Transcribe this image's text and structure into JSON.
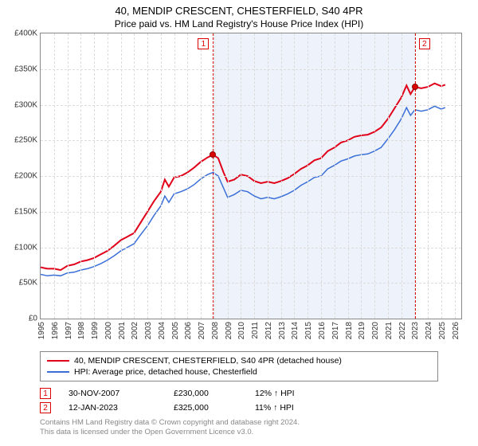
{
  "title": "40, MENDIP CRESCENT, CHESTERFIELD, S40 4PR",
  "subtitle": "Price paid vs. HM Land Registry's House Price Index (HPI)",
  "chart": {
    "type": "line",
    "x_domain": [
      1995,
      2026.5
    ],
    "y_domain": [
      0,
      400000
    ],
    "ylim": [
      0,
      400000
    ],
    "ytick_step": 50000,
    "yticks": [
      0,
      50000,
      100000,
      150000,
      200000,
      250000,
      300000,
      350000,
      400000
    ],
    "ytick_labels": [
      "£0",
      "£50K",
      "£100K",
      "£150K",
      "£200K",
      "£250K",
      "£300K",
      "£350K",
      "£400K"
    ],
    "xticks": [
      1995,
      1996,
      1997,
      1998,
      1999,
      2000,
      2001,
      2002,
      2003,
      2004,
      2005,
      2006,
      2007,
      2008,
      2009,
      2010,
      2011,
      2012,
      2013,
      2014,
      2015,
      2016,
      2017,
      2018,
      2019,
      2020,
      2021,
      2022,
      2023,
      2024,
      2025,
      2026
    ],
    "shade_start": 2007.91,
    "shade_end": 2023.03,
    "background_color": "#ffffff",
    "grid_color": "#dcdcdc",
    "border_color": "#888888",
    "series": [
      {
        "id": "subject",
        "label": "40, MENDIP CRESCENT, CHESTERFIELD, S40 4PR (detached house)",
        "color": "#e1001a",
        "line_width": 2,
        "data": [
          [
            1995.0,
            72000
          ],
          [
            1995.5,
            70000
          ],
          [
            1996.0,
            70000
          ],
          [
            1996.5,
            68000
          ],
          [
            1997.0,
            74000
          ],
          [
            1997.5,
            76000
          ],
          [
            1998.0,
            80000
          ],
          [
            1998.5,
            82000
          ],
          [
            1999.0,
            85000
          ],
          [
            1999.5,
            90000
          ],
          [
            2000.0,
            95000
          ],
          [
            2000.5,
            102000
          ],
          [
            2001.0,
            110000
          ],
          [
            2001.5,
            115000
          ],
          [
            2002.0,
            120000
          ],
          [
            2002.5,
            135000
          ],
          [
            2003.0,
            150000
          ],
          [
            2003.5,
            165000
          ],
          [
            2004.0,
            178000
          ],
          [
            2004.3,
            195000
          ],
          [
            2004.6,
            185000
          ],
          [
            2005.0,
            198000
          ],
          [
            2005.5,
            200000
          ],
          [
            2006.0,
            205000
          ],
          [
            2006.5,
            212000
          ],
          [
            2007.0,
            220000
          ],
          [
            2007.5,
            226000
          ],
          [
            2007.91,
            230000
          ],
          [
            2008.3,
            225000
          ],
          [
            2008.7,
            205000
          ],
          [
            2009.0,
            192000
          ],
          [
            2009.5,
            195000
          ],
          [
            2010.0,
            202000
          ],
          [
            2010.5,
            200000
          ],
          [
            2011.0,
            193000
          ],
          [
            2011.5,
            190000
          ],
          [
            2012.0,
            192000
          ],
          [
            2012.5,
            190000
          ],
          [
            2013.0,
            193000
          ],
          [
            2013.5,
            197000
          ],
          [
            2014.0,
            203000
          ],
          [
            2014.5,
            210000
          ],
          [
            2015.0,
            215000
          ],
          [
            2015.5,
            222000
          ],
          [
            2016.0,
            225000
          ],
          [
            2016.5,
            235000
          ],
          [
            2017.0,
            240000
          ],
          [
            2017.5,
            247000
          ],
          [
            2018.0,
            250000
          ],
          [
            2018.5,
            255000
          ],
          [
            2019.0,
            257000
          ],
          [
            2019.5,
            258000
          ],
          [
            2020.0,
            262000
          ],
          [
            2020.5,
            268000
          ],
          [
            2021.0,
            280000
          ],
          [
            2021.5,
            295000
          ],
          [
            2022.0,
            310000
          ],
          [
            2022.4,
            327000
          ],
          [
            2022.7,
            315000
          ],
          [
            2023.03,
            325000
          ],
          [
            2023.5,
            323000
          ],
          [
            2024.0,
            325000
          ],
          [
            2024.5,
            330000
          ],
          [
            2025.0,
            326000
          ],
          [
            2025.3,
            328000
          ]
        ]
      },
      {
        "id": "hpi",
        "label": "HPI: Average price, detached house, Chesterfield",
        "color": "#3a6fd8",
        "line_width": 1.5,
        "data": [
          [
            1995.0,
            62000
          ],
          [
            1995.5,
            60000
          ],
          [
            1996.0,
            61000
          ],
          [
            1996.5,
            60000
          ],
          [
            1997.0,
            64000
          ],
          [
            1997.5,
            65000
          ],
          [
            1998.0,
            68000
          ],
          [
            1998.5,
            70000
          ],
          [
            1999.0,
            73000
          ],
          [
            1999.5,
            77000
          ],
          [
            2000.0,
            82000
          ],
          [
            2000.5,
            88000
          ],
          [
            2001.0,
            95000
          ],
          [
            2001.5,
            100000
          ],
          [
            2002.0,
            105000
          ],
          [
            2002.5,
            118000
          ],
          [
            2003.0,
            130000
          ],
          [
            2003.5,
            145000
          ],
          [
            2004.0,
            158000
          ],
          [
            2004.3,
            172000
          ],
          [
            2004.6,
            163000
          ],
          [
            2005.0,
            175000
          ],
          [
            2005.5,
            178000
          ],
          [
            2006.0,
            182000
          ],
          [
            2006.5,
            188000
          ],
          [
            2007.0,
            196000
          ],
          [
            2007.5,
            202000
          ],
          [
            2007.91,
            205000
          ],
          [
            2008.3,
            200000
          ],
          [
            2008.7,
            183000
          ],
          [
            2009.0,
            170000
          ],
          [
            2009.5,
            174000
          ],
          [
            2010.0,
            180000
          ],
          [
            2010.5,
            178000
          ],
          [
            2011.0,
            172000
          ],
          [
            2011.5,
            168000
          ],
          [
            2012.0,
            170000
          ],
          [
            2012.5,
            168000
          ],
          [
            2013.0,
            171000
          ],
          [
            2013.5,
            175000
          ],
          [
            2014.0,
            180000
          ],
          [
            2014.5,
            187000
          ],
          [
            2015.0,
            192000
          ],
          [
            2015.5,
            198000
          ],
          [
            2016.0,
            200000
          ],
          [
            2016.5,
            210000
          ],
          [
            2017.0,
            215000
          ],
          [
            2017.5,
            221000
          ],
          [
            2018.0,
            224000
          ],
          [
            2018.5,
            228000
          ],
          [
            2019.0,
            230000
          ],
          [
            2019.5,
            231000
          ],
          [
            2020.0,
            235000
          ],
          [
            2020.5,
            240000
          ],
          [
            2021.0,
            252000
          ],
          [
            2021.5,
            265000
          ],
          [
            2022.0,
            280000
          ],
          [
            2022.4,
            296000
          ],
          [
            2022.7,
            285000
          ],
          [
            2023.03,
            293000
          ],
          [
            2023.5,
            291000
          ],
          [
            2024.0,
            293000
          ],
          [
            2024.5,
            298000
          ],
          [
            2025.0,
            294000
          ],
          [
            2025.3,
            296000
          ]
        ]
      }
    ],
    "markers": [
      {
        "idx": "1",
        "x": 2007.91,
        "y": 230000
      },
      {
        "idx": "2",
        "x": 2023.03,
        "y": 325000
      }
    ]
  },
  "legend": {
    "items": [
      {
        "color": "#e1001a",
        "label": "40, MENDIP CRESCENT, CHESTERFIELD, S40 4PR (detached house)"
      },
      {
        "color": "#3a6fd8",
        "label": "HPI: Average price, detached house, Chesterfield"
      }
    ]
  },
  "sales": [
    {
      "idx": "1",
      "date": "30-NOV-2007",
      "price": "£230,000",
      "hpi": "12% ↑ HPI"
    },
    {
      "idx": "2",
      "date": "12-JAN-2023",
      "price": "£325,000",
      "hpi": "11% ↑ HPI"
    }
  ],
  "footer": {
    "line1": "Contains HM Land Registry data © Crown copyright and database right 2024.",
    "line2": "This data is licensed under the Open Government Licence v3.0."
  }
}
